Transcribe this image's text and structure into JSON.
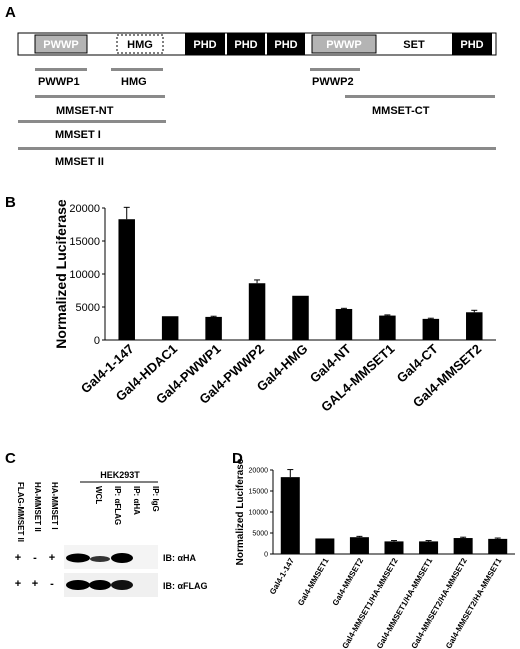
{
  "panels": {
    "A": {
      "label": "A",
      "domains": [
        "PWWP",
        "HMG",
        "PHD",
        "PHD",
        "PHD",
        "PWWP",
        "SET",
        "PHD"
      ],
      "fragments": [
        "PWWP1",
        "HMG",
        "PWWP2",
        "MMSET-NT",
        "MMSET-CT",
        "MMSET I",
        "MMSET II"
      ]
    },
    "B": {
      "label": "B"
    },
    "C": {
      "label": "C",
      "cell_line": "HEK293T",
      "lanes": [
        "WCL",
        "IP: αFLAG",
        "IP: αHA",
        "IP: IgG"
      ],
      "transfections": [
        "FLAG-MMSET II",
        "HA-MMSET II",
        "HA-MMSET I"
      ],
      "pm_rows": [
        [
          "+",
          "-",
          "+"
        ],
        [
          "+",
          "+",
          "-"
        ]
      ],
      "blots": [
        "IB: αHA",
        "IB: αFLAG"
      ]
    },
    "D": {
      "label": "D"
    }
  },
  "chart_data": [
    {
      "type": "bar",
      "panel": "B",
      "ylabel": "Normalized Luciferase",
      "ylim": [
        0,
        20000
      ],
      "yticks": [
        "0",
        "5000",
        "10000",
        "15000",
        "20000"
      ],
      "categories": [
        "Gal4-1-147",
        "Gal4-HDAC1",
        "Gal4-PWWP1",
        "Gal4-PWWP2",
        "Gal4-HMG",
        "Gal4-NT",
        "GAL4-MMSET1",
        "Gal4-CT",
        "Gal4-MMSET2"
      ],
      "values": [
        18300,
        3600,
        3500,
        8600,
        6700,
        4700,
        3700,
        3200,
        4200
      ],
      "errors": [
        1800,
        0,
        100,
        500,
        0,
        100,
        100,
        100,
        300
      ]
    },
    {
      "type": "bar",
      "panel": "D",
      "ylabel": "Normalized Luciferase",
      "ylim": [
        0,
        20000
      ],
      "yticks": [
        "0",
        "5000",
        "10000",
        "15000",
        "20000"
      ],
      "categories": [
        "Gal4-1-147",
        "Gal4-MMSET1",
        "Gal4-MMSET2",
        "Gal4-MMSET1/HA-MMSET2",
        "Gal4-MMSET1/HA-MMSET1",
        "Gal4-MMSET2/HA-MMSET2",
        "Gal4-MMSET2/HA-MMSET1"
      ],
      "values": [
        18300,
        3700,
        4000,
        3000,
        3000,
        3800,
        3600
      ],
      "errors": [
        1800,
        0,
        200,
        200,
        200,
        200,
        200
      ]
    }
  ]
}
